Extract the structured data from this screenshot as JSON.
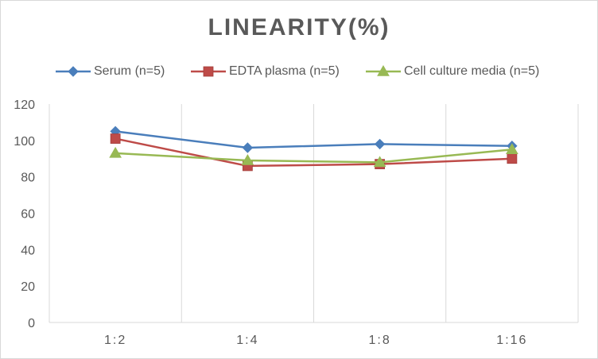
{
  "chart_data": {
    "type": "line",
    "title": "LINEARITY(%)",
    "xlabel": "",
    "ylabel": "",
    "categories": [
      "1:2",
      "1:4",
      "1:8",
      "1:16"
    ],
    "ylim": [
      0,
      120
    ],
    "yticks": [
      0,
      20,
      40,
      60,
      80,
      100,
      120
    ],
    "grid": "vertical",
    "legend_position": "top",
    "series": [
      {
        "name": "Serum (n=5)",
        "values": [
          105,
          96,
          98,
          97
        ],
        "color": "#4a7ebb",
        "marker": "diamond"
      },
      {
        "name": "EDTA plasma (n=5)",
        "values": [
          101,
          86,
          87,
          90
        ],
        "color": "#be4b48",
        "marker": "square"
      },
      {
        "name": "Cell culture media (n=5)",
        "values": [
          93,
          89,
          88,
          95
        ],
        "color": "#98b954",
        "marker": "triangle"
      }
    ]
  }
}
